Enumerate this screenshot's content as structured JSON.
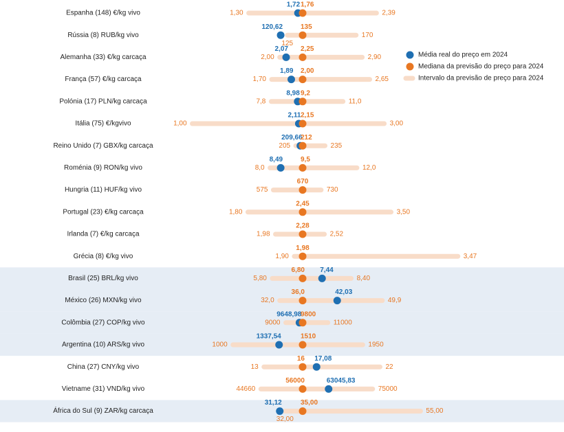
{
  "chart_data": {
    "type": "range-dot",
    "categories": [
      "Espanha (148) €/kg vivo",
      "Rússia (8) RUB/kg vivo",
      "Alemanha (33) €/kg carcaça",
      "França (57) €/kg carcaça",
      "Polónia (17) PLN/kg carcaça",
      "Itália (75) €/kgvivo",
      "Reino Unido (7) GBX/kg carcaça",
      "Roménia (9) RON/kg vivo",
      "Hungria (11) HUF/kg vivo",
      "Portugal (23) €/kg carcaça",
      "Irlanda (7) €/kg carcaça",
      "Grécia (8) €/kg vivo",
      "Brasil (25) BRL/kg vivo",
      "México (26) MXN/kg vivo",
      "Colômbia (27) COP/kg vivo",
      "Argentina (10) ARS/kg vivo",
      "China (27) CNY/kg vivo",
      "Vietname (31) VND/kg vivo",
      "África do Sul (9) ZAR/kg carcaça"
    ],
    "shaded_rows": [
      12,
      13,
      14,
      15,
      18
    ],
    "series": [
      {
        "name": "Média real do preço em 2024",
        "color": "#1f6fb2",
        "values": [
          1.72,
          120.62,
          2.07,
          1.89,
          8.98,
          2.11,
          209.66,
          8.49,
          null,
          null,
          null,
          null,
          7.44,
          42.03,
          9648.98,
          1337.54,
          17.08,
          63045.83,
          31.12
        ],
        "value_labels": [
          "1,72",
          "120,62",
          "2,07",
          "1,89",
          "8,98",
          "2,11",
          "209,66",
          "8,49",
          null,
          null,
          null,
          null,
          "7,44",
          "42,03",
          "9648,98",
          "1337,54",
          "17,08",
          "63045,83",
          "31,12"
        ]
      },
      {
        "name": "Mediana da previsão do preço para 2024",
        "color": "#e87722",
        "values": [
          1.76,
          135,
          2.25,
          2.0,
          9.2,
          2.15,
          212,
          9.5,
          670,
          2.45,
          2.28,
          1.98,
          6.8,
          36.0,
          9800,
          1510,
          16,
          56000,
          35.0
        ],
        "value_labels": [
          "1,76",
          "135",
          "2,25",
          "2,00",
          "9,2",
          "2,15",
          "212",
          "9,5",
          "670",
          "2,45",
          "2,28",
          "1,98",
          "6,80",
          "36,0",
          "9800",
          "1510",
          "16",
          "56000",
          "35,00"
        ]
      },
      {
        "name": "Intervalo da previsão de preço para 2024",
        "color": "#f8dcc8",
        "low": [
          1.3,
          125,
          2.0,
          1.7,
          7.8,
          1.0,
          205,
          8.0,
          575,
          1.8,
          1.98,
          1.9,
          5.8,
          32.0,
          9000,
          1000,
          13,
          44660,
          32.0
        ],
        "low_labels": [
          "1,30",
          "125",
          "2,00",
          "1,70",
          "7,8",
          "1,00",
          "205",
          "8,0",
          "575",
          "1,80",
          "1,98",
          "1,90",
          "5,80",
          "32,0",
          "9000",
          "1000",
          "13",
          "44660",
          "32,00"
        ],
        "high": [
          2.39,
          170,
          2.9,
          2.65,
          11.0,
          3.0,
          235,
          12.0,
          730,
          3.5,
          2.52,
          3.47,
          8.4,
          49.9,
          11000,
          1950,
          22,
          75000,
          55.0
        ],
        "high_labels": [
          "2,39",
          "170",
          "2,90",
          "2,65",
          "11,0",
          "3,00",
          "235",
          "12,0",
          "730",
          "3,50",
          "2,52",
          "3,47",
          "8,40",
          "49,9",
          "11000",
          "1950",
          "22",
          "75000",
          "55,00"
        ]
      }
    ]
  }
}
